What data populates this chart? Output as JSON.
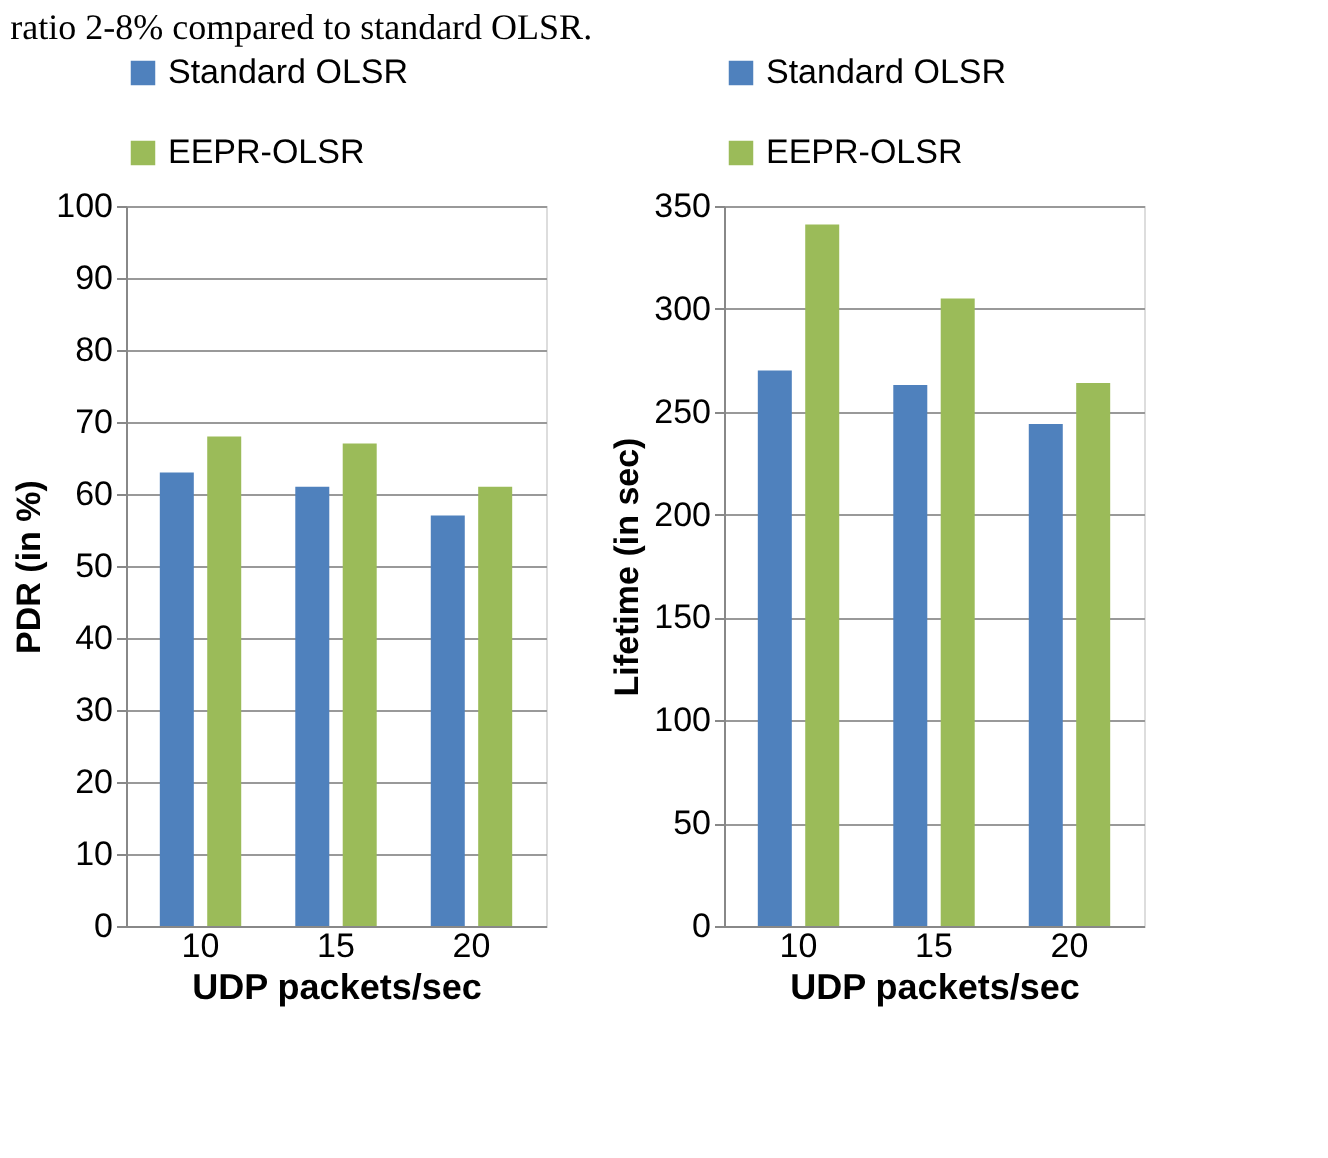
{
  "chart_data": [
    {
      "type": "bar",
      "categories": [
        "10",
        "15",
        "20"
      ],
      "xlabel": "UDP packets/sec",
      "ylabel": "PDR (in %)",
      "ylim": [
        0,
        100
      ],
      "yticks": [
        0,
        10,
        20,
        30,
        40,
        50,
        60,
        70,
        80,
        90,
        100
      ],
      "grid": "y",
      "legend": "top",
      "annotations": [
        "ratio 2-8% compared to standard OLSR."
      ],
      "series": [
        {
          "name": "Standard OLSR",
          "color": "#4f81bd",
          "values": [
            63,
            61,
            57
          ]
        },
        {
          "name": "EEPR-OLSR",
          "color": "#9bbb59",
          "values": [
            68,
            67,
            61
          ]
        }
      ]
    },
    {
      "type": "bar",
      "categories": [
        "10",
        "15",
        "20"
      ],
      "xlabel": "UDP packets/sec",
      "ylabel": "Lifetime (in sec)",
      "ylim": [
        0,
        350
      ],
      "yticks": [
        0,
        50,
        100,
        150,
        200,
        250,
        300,
        350
      ],
      "grid": "y",
      "legend": "top",
      "series": [
        {
          "name": "Standard OLSR",
          "color": "#4f81bd",
          "values": [
            270,
            263,
            244
          ]
        },
        {
          "name": "EEPR-OLSR",
          "color": "#9bbb59",
          "values": [
            341,
            305,
            264
          ]
        }
      ]
    }
  ]
}
